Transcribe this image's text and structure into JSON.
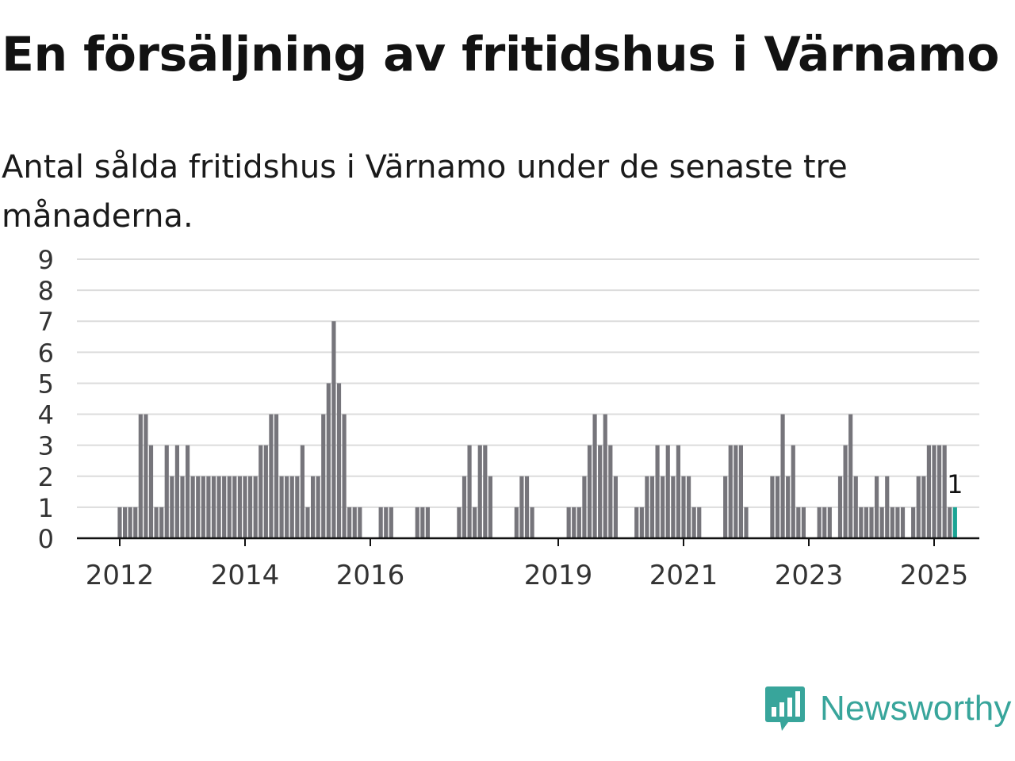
{
  "title": "En försäljning av fritidshus i Värnamo",
  "subtitle": "Antal sålda fritidshus i Värnamo under de senaste tre månaderna.",
  "brand": {
    "name": "Newsworthy",
    "icon": "newsworthy-logo-icon",
    "color": "#38a59b"
  },
  "chart_data": {
    "type": "bar",
    "title": "En försäljning av fritidshus i Värnamo",
    "subtitle": "Antal sålda fritidshus i Värnamo under de senaste tre månaderna.",
    "xlabel": "",
    "ylabel": "",
    "ylim": [
      0,
      9
    ],
    "yticks": [
      0,
      1,
      2,
      3,
      4,
      5,
      6,
      7,
      8,
      9
    ],
    "xticks": [
      "2012",
      "2014",
      "2016",
      "2019",
      "2021",
      "2023",
      "2025"
    ],
    "grid": true,
    "start": "2012-01",
    "bar_color": "#76757b",
    "highlight_color": "#1aa494",
    "highlight_label": "1",
    "values": [
      1,
      1,
      1,
      1,
      4,
      4,
      3,
      1,
      1,
      3,
      2,
      3,
      2,
      3,
      2,
      2,
      2,
      2,
      2,
      2,
      2,
      2,
      2,
      2,
      2,
      2,
      2,
      3,
      3,
      4,
      4,
      2,
      2,
      2,
      2,
      3,
      1,
      2,
      2,
      4,
      5,
      7,
      5,
      4,
      1,
      1,
      1,
      0,
      0,
      0,
      1,
      1,
      1,
      0,
      0,
      0,
      0,
      1,
      1,
      1,
      0,
      0,
      0,
      0,
      0,
      1,
      2,
      3,
      1,
      3,
      3,
      2,
      0,
      0,
      0,
      0,
      1,
      2,
      2,
      1,
      0,
      0,
      0,
      0,
      0,
      0,
      1,
      1,
      1,
      2,
      3,
      4,
      3,
      4,
      3,
      2,
      0,
      0,
      0,
      1,
      1,
      2,
      2,
      3,
      2,
      3,
      2,
      3,
      2,
      2,
      1,
      1,
      0,
      0,
      0,
      0,
      2,
      3,
      3,
      3,
      1,
      0,
      0,
      0,
      0,
      2,
      2,
      4,
      2,
      3,
      1,
      1,
      0,
      0,
      1,
      1,
      1,
      0,
      2,
      3,
      4,
      2,
      1,
      1,
      1,
      2,
      1,
      2,
      1,
      1,
      1,
      0,
      1,
      2,
      2,
      3,
      3,
      3,
      3,
      1,
      1
    ]
  }
}
